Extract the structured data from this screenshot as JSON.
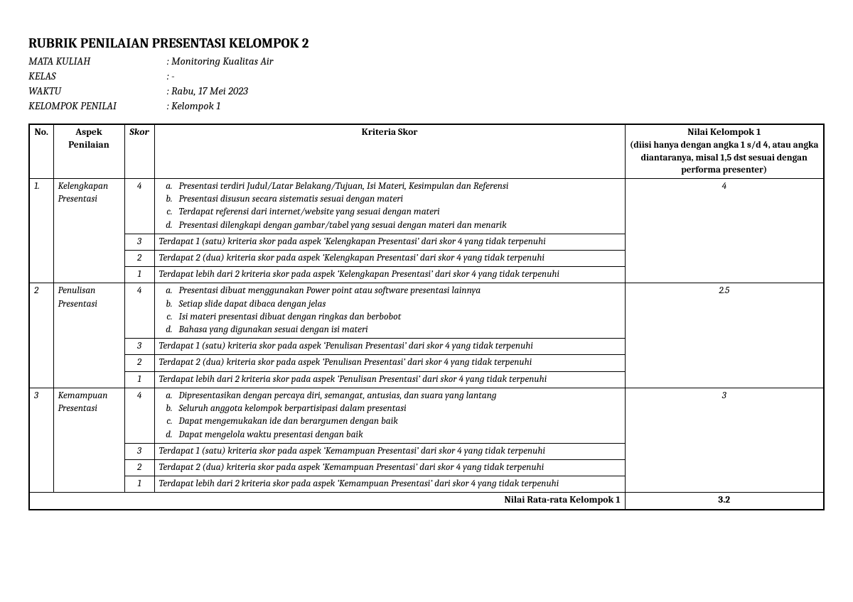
{
  "title": "RUBRIK PENILAIAN PRESENTASI KELOMPOK 2",
  "meta": {
    "mata_kuliah_label": "MATA KULIAH",
    "mata_kuliah_value": ": Monitoring Kualitas Air",
    "kelas_label": "KELAS",
    "kelas_value": ": -",
    "waktu_label": "WAKTU",
    "waktu_value": ": Rabu, 17 Mei 2023",
    "kelompok_label": "KELOMPOK PENILAI",
    "kelompok_value": ": Kelompok 1"
  },
  "headers": {
    "no": "No.",
    "aspek": "Aspek Penilaian",
    "skor": "Skor",
    "kriteria": "Kriteria Skor",
    "nilai": "Nilai Kelompok 1",
    "nilai_sub": "(diisi hanya dengan angka 1 s/d 4, atau angka diantaranya, misal 1,5 dst sesuai dengan performa presenter)"
  },
  "rows": [
    {
      "no": "1.",
      "aspek": "Kelengkapan Presentasi",
      "nilai": "4",
      "levels": [
        {
          "skor": "4",
          "items": [
            "Presentasi terdiri Judul/Latar Belakang/Tujuan, Isi Materi, Kesimpulan dan Referensi",
            "Presentasi disusun secara sistematis sesuai dengan materi",
            "Terdapat referensi dari internet/website yang sesuai dengan materi",
            "Presentasi dilengkapi dengan gambar/tabel yang sesuai dengan materi dan menarik"
          ]
        },
        {
          "skor": "3",
          "text": "Terdapat 1 (satu) kriteria skor pada aspek ‘Kelengkapan Presentasi’ dari skor 4 yang tidak terpenuhi"
        },
        {
          "skor": "2",
          "text": "Terdapat 2 (dua) kriteria skor pada aspek ‘Kelengkapan Presentasi’ dari skor 4 yang tidak terpenuhi"
        },
        {
          "skor": "1",
          "text": "Terdapat lebih dari 2 kriteria skor pada aspek ‘Kelengkapan Presentasi’ dari skor 4 yang tidak terpenuhi"
        }
      ]
    },
    {
      "no": "2",
      "aspek": "Penulisan Presentasi",
      "nilai": "2.5",
      "levels": [
        {
          "skor": "4",
          "items": [
            "Presentasi dibuat menggunakan Power point atau software presentasi lainnya",
            "Setiap slide dapat dibaca dengan jelas",
            "Isi materi presentasi dibuat dengan ringkas dan berbobot",
            "Bahasa yang digunakan sesuai dengan isi materi"
          ]
        },
        {
          "skor": "3",
          "text": "Terdapat 1 (satu) kriteria skor pada aspek ‘Penulisan Presentasi’ dari skor 4 yang tidak terpenuhi"
        },
        {
          "skor": "2",
          "text": "Terdapat 2 (dua) kriteria skor pada aspek ‘Penulisan Presentasi’ dari skor 4 yang tidak terpenuhi"
        },
        {
          "skor": "1",
          "text": "Terdapat lebih dari 2 kriteria skor pada aspek ‘Penulisan Presentasi’ dari skor 4 yang tidak terpenuhi"
        }
      ]
    },
    {
      "no": "3",
      "aspek": "Kemampuan Presentasi",
      "nilai": "3",
      "levels": [
        {
          "skor": "4",
          "items": [
            "Dipresentasikan dengan percaya diri, semangat, antusias, dan suara yang lantang",
            "Seluruh anggota kelompok berpartisipasi dalam presentasi",
            "Dapat mengemukakan ide dan berargumen dengan baik",
            "Dapat mengelola waktu presentasi dengan baik"
          ]
        },
        {
          "skor": "3",
          "text": "Terdapat 1 (satu) kriteria skor pada aspek ‘Kemampuan Presentasi’ dari skor 4 yang tidak terpenuhi"
        },
        {
          "skor": "2",
          "text": "Terdapat 2 (dua) kriteria skor pada aspek ‘Kemampuan Presentasi’ dari skor 4 yang tidak terpenuhi"
        },
        {
          "skor": "1",
          "text": "Terdapat lebih dari 2 kriteria skor pada aspek ‘Kemampuan Presentasi’ dari skor 4 yang tidak terpenuhi"
        }
      ]
    }
  ],
  "footer": {
    "label": "Nilai Rata-rata Kelompok 1",
    "value": "3.2"
  }
}
